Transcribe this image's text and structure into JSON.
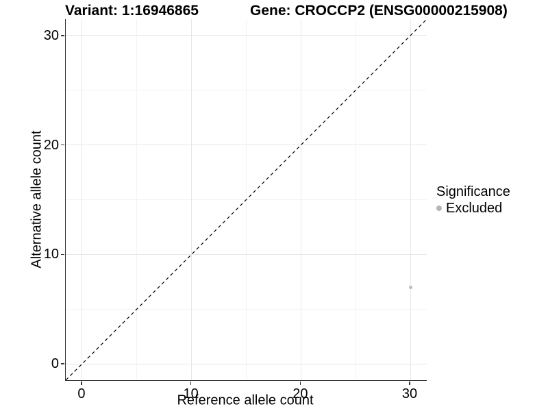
{
  "figure": {
    "title_left": "Variant: 1:16946865",
    "title_right": "Gene: CROCCP2 (ENSG00000215908)"
  },
  "chart_data": {
    "type": "scatter",
    "title": "Variant: 1:16946865 / Gene: CROCCP2 (ENSG00000215908)",
    "xlabel": "Reference allele count",
    "ylabel": "Alternative allele count",
    "xlim": [
      -1.5,
      31.5
    ],
    "ylim": [
      -1.5,
      31.5
    ],
    "x_major_ticks": [
      0,
      10,
      20,
      30
    ],
    "x_minor_ticks": [
      5,
      15,
      25
    ],
    "y_major_ticks": [
      0,
      10,
      20,
      30
    ],
    "y_minor_ticks": [
      5,
      15,
      25
    ],
    "grid": "major+minor",
    "identity_line": {
      "style": "dashed",
      "color": "#000000",
      "from": [
        -1.5,
        -1.5
      ],
      "to": [
        31.5,
        31.5
      ]
    },
    "series": [
      {
        "name": "Excluded",
        "color": "#bcbcbc",
        "point_radius": 2.5,
        "points": [
          {
            "x": 30,
            "y": 7
          }
        ]
      }
    ],
    "legend": {
      "title": "Significance",
      "position": "right",
      "items": [
        {
          "label": "Excluded",
          "color": "#b5b5b5"
        }
      ]
    }
  },
  "colors": {
    "axis_line": "#333333",
    "grid_major": "#e7e7e7",
    "grid_minor": "#f3f3f3",
    "background": "#ffffff"
  }
}
